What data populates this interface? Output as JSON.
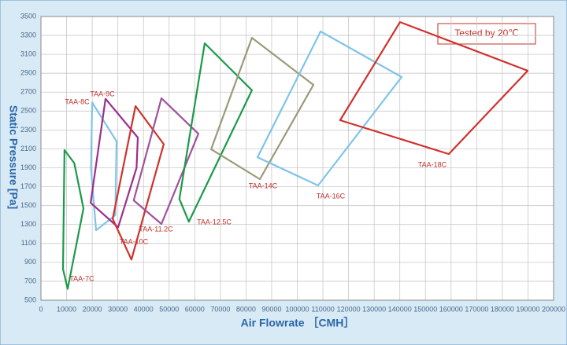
{
  "chart_data": {
    "type": "polygon",
    "xlabel": "Air Flowrate ［CMH］",
    "ylabel": "Static Pressure [Pa]",
    "annotation": "Tested  by 20℃",
    "xlim": [
      0,
      200000
    ],
    "ylim": [
      500,
      3500
    ],
    "xticks": [
      0,
      10000,
      20000,
      30000,
      40000,
      50000,
      60000,
      70000,
      80000,
      90000,
      100000,
      110000,
      120000,
      130000,
      140000,
      150000,
      160000,
      170000,
      180000,
      190000,
      200000
    ],
    "yticks": [
      500,
      700,
      900,
      1100,
      1300,
      1500,
      1700,
      1900,
      2100,
      2300,
      2500,
      2700,
      2900,
      3100,
      3300,
      3500
    ],
    "grid": true,
    "series": [
      {
        "name": "TAA-7C",
        "color": "#1a9a4a",
        "x": [
          9200,
          13000,
          16600,
          10400,
          8600
        ],
        "y": [
          2087,
          1950,
          1470,
          620,
          830
        ]
      },
      {
        "name": "TAA-8C",
        "color": "#7fc4e8",
        "x": [
          20000,
          29500,
          29000,
          21500,
          19500
        ],
        "y": [
          2590,
          2180,
          1400,
          1240,
          1900
        ]
      },
      {
        "name": "TAA-9C",
        "color": "#9b2f8b",
        "x": [
          25200,
          37800,
          37300,
          30100,
          19400
        ],
        "y": [
          2630,
          2220,
          1900,
          1270,
          1530
        ]
      },
      {
        "name": "TAA-10C",
        "color": "#d0312d",
        "x": [
          36900,
          47900,
          35300,
          28000
        ],
        "y": [
          2553,
          2150,
          930,
          1360
        ]
      },
      {
        "name": "TAA-11.2C",
        "color": "#a0529a",
        "x": [
          47000,
          61400,
          47000,
          36200
        ],
        "y": [
          2636,
          2260,
          1306,
          1555
        ]
      },
      {
        "name": "TAA-12.5C",
        "color": "#1a9a4a",
        "x": [
          63900,
          82300,
          57700,
          54000
        ],
        "y": [
          3217,
          2720,
          1330,
          1570
        ]
      },
      {
        "name": "TAA-14C",
        "color": "#9a9a78",
        "x": [
          82300,
          106300,
          85400,
          66400
        ],
        "y": [
          3275,
          2777,
          1780,
          2096
        ]
      },
      {
        "name": "TAA-16C",
        "color": "#7fc4e8",
        "x": [
          109100,
          140700,
          108100,
          84500
        ],
        "y": [
          3342,
          2860,
          1713,
          2012
        ]
      },
      {
        "name": "TAA-18C",
        "color": "#d0312d",
        "x": [
          140100,
          189900,
          159100,
          116700
        ],
        "y": [
          3441,
          2927,
          2046,
          2403
        ]
      }
    ]
  }
}
